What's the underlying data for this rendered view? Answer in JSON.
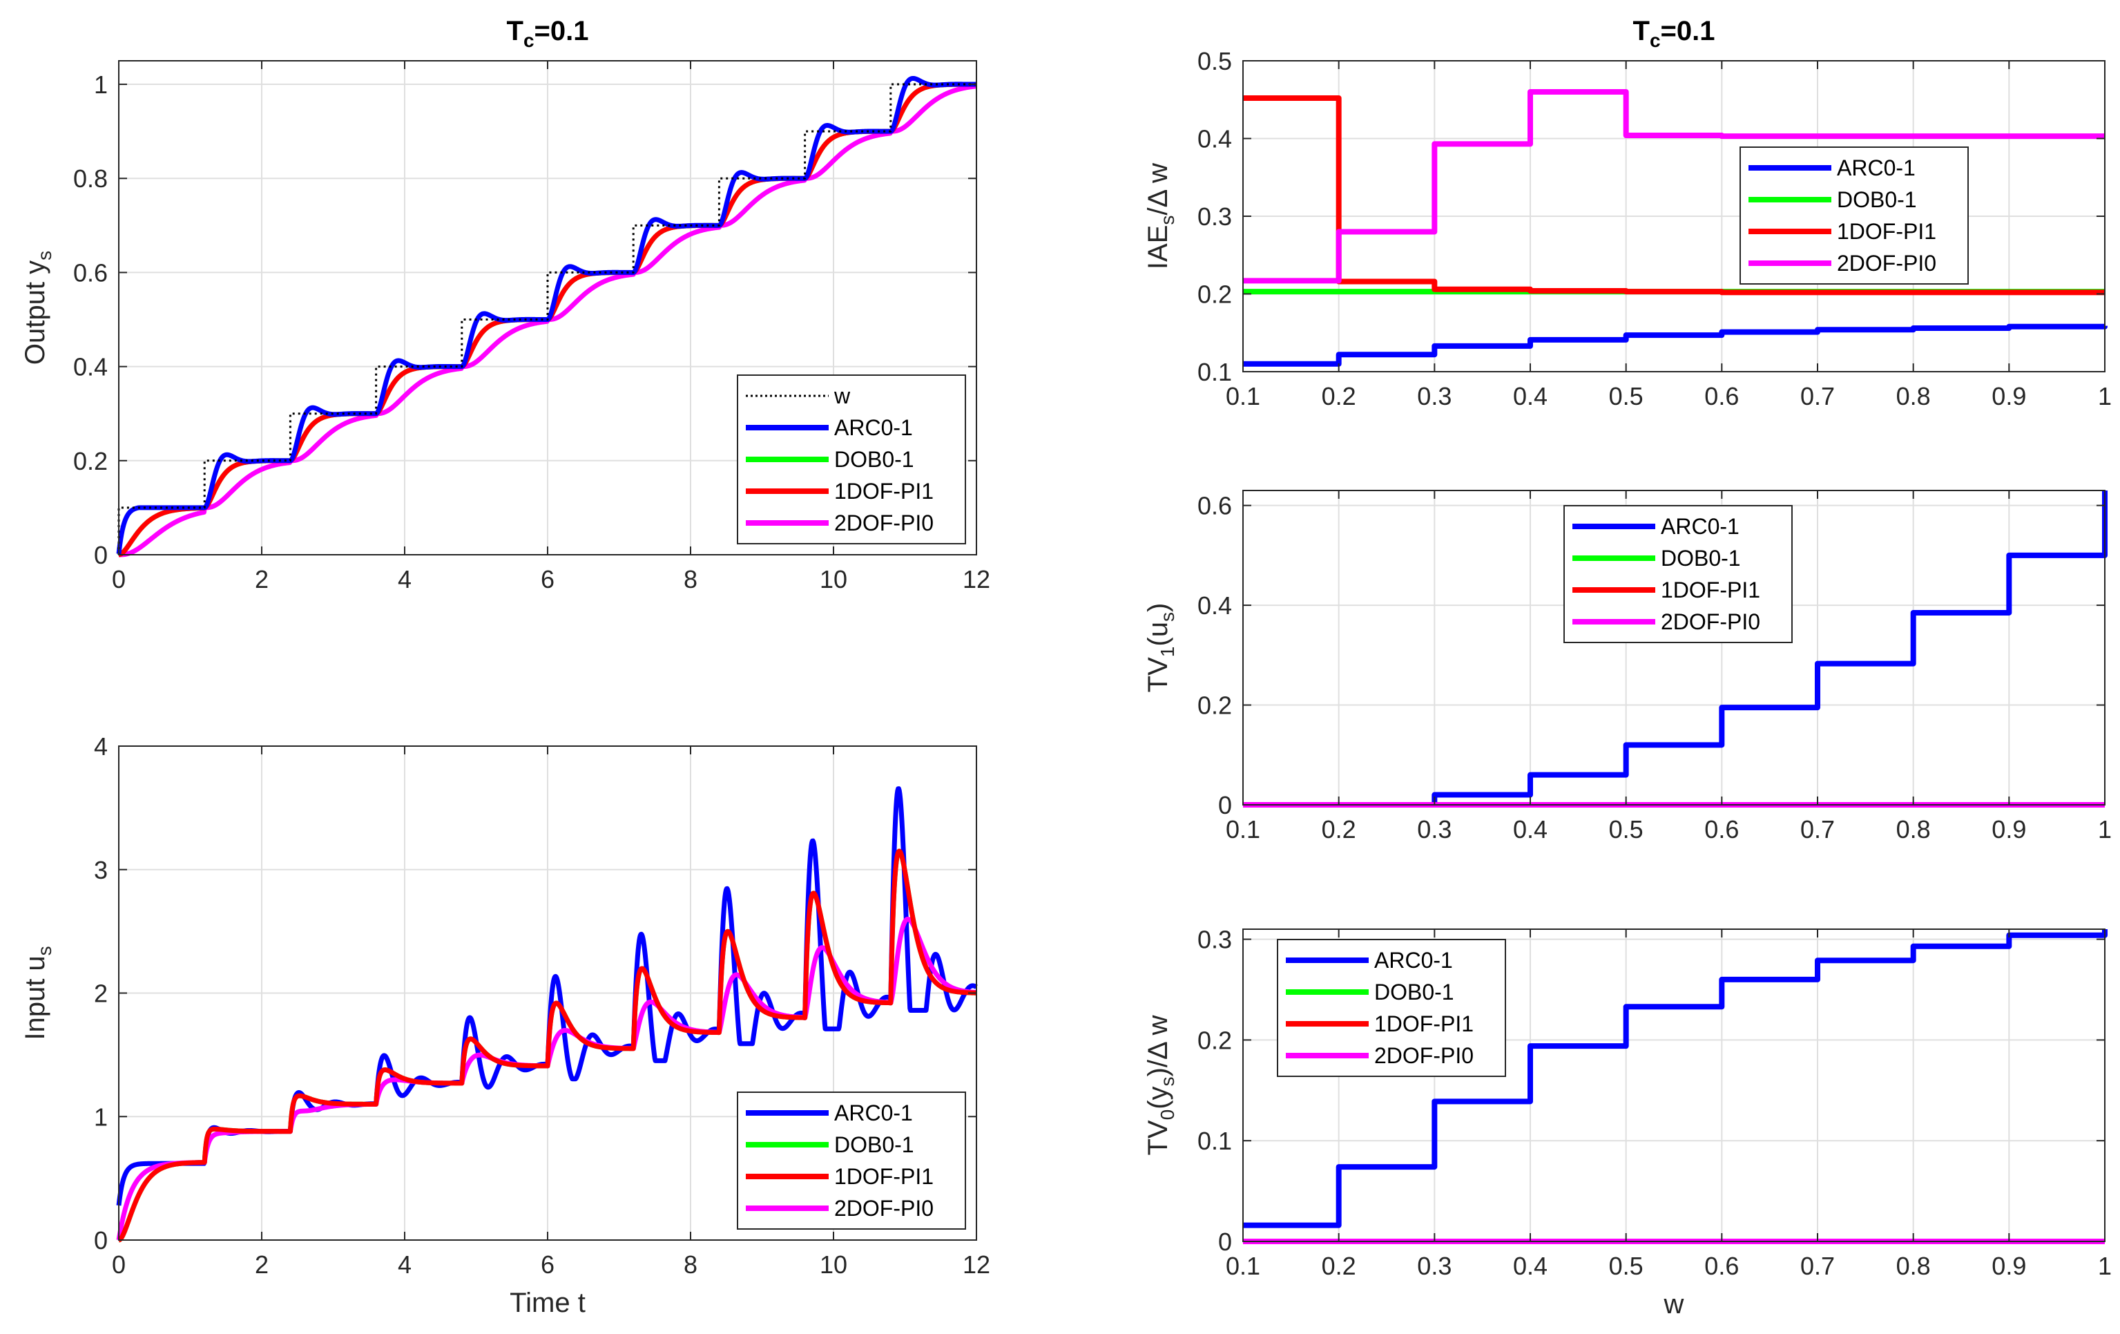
{
  "colors": {
    "w": "#000000",
    "ARC0-1": "#0000ff",
    "DOB0-1": "#00ff00",
    "1DOF-PI1": "#ff0000",
    "2DOF-PI0": "#ff00ff"
  },
  "chart_data": [
    {
      "id": "output",
      "type": "line",
      "title_main": "T",
      "title_sub": "c",
      "title_rest": "=0.1",
      "ylabel_main": "Output y",
      "ylabel_sub": "s",
      "xlabel": "",
      "xlim": [
        0,
        12
      ],
      "ylim": [
        0,
        1.05
      ],
      "xticks": [
        0,
        2,
        4,
        6,
        8,
        10,
        12
      ],
      "yticks": [
        0,
        0.2,
        0.4,
        0.6,
        0.8,
        1
      ],
      "ytick_labels": [
        "0",
        "0.2",
        "0.4",
        "0.6",
        "0.8",
        "1"
      ],
      "grid": true,
      "legend_position": "bottom-right",
      "legend": [
        "w",
        "ARC0-1",
        "DOB0-1",
        "1DOF-PI1",
        "2DOF-PI0"
      ],
      "step_times": [
        0,
        1.2,
        2.4,
        3.6,
        4.8,
        6.0,
        7.2,
        8.4,
        9.6,
        10.8
      ],
      "step_levels": [
        0.1,
        0.2,
        0.3,
        0.4,
        0.5,
        0.6,
        0.7,
        0.8,
        0.9,
        1.0
      ],
      "t_end": 12
    },
    {
      "id": "input",
      "type": "line",
      "ylabel_main": "Input u",
      "ylabel_sub": "s",
      "xlabel": "Time t",
      "xlim": [
        0,
        12
      ],
      "ylim": [
        0,
        4
      ],
      "xticks": [
        0,
        2,
        4,
        6,
        8,
        10,
        12
      ],
      "yticks": [
        0,
        1,
        2,
        3,
        4
      ],
      "ytick_labels": [
        "0",
        "1",
        "2",
        "3",
        "4"
      ],
      "grid": true,
      "legend_position": "bottom-right",
      "legend": [
        "ARC0-1",
        "DOB0-1",
        "1DOF-PI1",
        "2DOF-PI0"
      ],
      "step_times": [
        0,
        1.2,
        2.4,
        3.6,
        4.8,
        6.0,
        7.2,
        8.4,
        9.6,
        10.8
      ],
      "steady_levels": [
        0.63,
        0.88,
        1.1,
        1.27,
        1.41,
        1.55,
        1.68,
        1.8,
        1.92,
        2.0
      ],
      "peaks_ARC0-1": [
        0.63,
        0.92,
        1.21,
        1.52,
        1.84,
        2.19,
        2.55,
        2.94,
        3.35,
        3.8
      ],
      "peaks_1DOF-PI1": [
        0.63,
        0.9,
        1.17,
        1.38,
        1.63,
        1.92,
        2.2,
        2.5,
        2.81,
        3.15
      ],
      "peaks_2DOF-PI0": [
        0.6,
        0.87,
        1.05,
        1.3,
        1.5,
        1.7,
        1.93,
        2.15,
        2.37,
        2.6
      ]
    },
    {
      "id": "iae",
      "type": "line",
      "title_main": "T",
      "title_sub": "c",
      "title_rest": "=0.1",
      "ylabel_main": "IAE",
      "ylabel_sub": "s",
      "ylabel_rest": "/Δ w",
      "xlabel": "",
      "xlim": [
        0.1,
        1
      ],
      "ylim": [
        0.1,
        0.5
      ],
      "xticks": [
        0.1,
        0.2,
        0.3,
        0.4,
        0.5,
        0.6,
        0.7,
        0.8,
        0.9,
        1
      ],
      "xtick_labels": [
        "0.1",
        "0.2",
        "0.3",
        "0.4",
        "0.5",
        "0.6",
        "0.7",
        "0.8",
        "0.9",
        "1"
      ],
      "yticks": [
        0.1,
        0.2,
        0.3,
        0.4,
        0.5
      ],
      "ytick_labels": [
        "0.1",
        "0.2",
        "0.3",
        "0.4",
        "0.5"
      ],
      "grid": true,
      "legend_position": "top-right",
      "legend": [
        "ARC0-1",
        "DOB0-1",
        "1DOF-PI1",
        "2DOF-PI0"
      ],
      "x": [
        0.1,
        0.2,
        0.3,
        0.4,
        0.5,
        0.6,
        0.7,
        0.8,
        0.9,
        1.0
      ],
      "series": [
        {
          "name": "ARC0-1",
          "values": [
            0.11,
            0.122,
            0.133,
            0.141,
            0.147,
            0.151,
            0.154,
            0.156,
            0.158,
            0.159
          ]
        },
        {
          "name": "DOB0-1",
          "values": [
            0.203,
            0.203,
            0.203,
            0.203,
            0.203,
            0.203,
            0.203,
            0.203,
            0.203,
            0.203
          ]
        },
        {
          "name": "1DOF-PI1",
          "values": [
            0.452,
            0.216,
            0.206,
            0.204,
            0.203,
            0.202,
            0.202,
            0.202,
            0.202,
            0.202
          ]
        },
        {
          "name": "2DOF-PI0",
          "values": [
            0.217,
            0.28,
            0.393,
            0.46,
            0.404,
            0.403,
            0.403,
            0.403,
            0.403,
            0.403
          ]
        }
      ]
    },
    {
      "id": "tv1",
      "type": "line",
      "ylabel_main": "TV",
      "ylabel_sub": "1",
      "ylabel_rest": "(u",
      "ylabel_sub2": "s",
      "ylabel_rest2": ")",
      "xlabel": "",
      "xlim": [
        0.1,
        1
      ],
      "ylim": [
        0,
        0.63
      ],
      "xticks": [
        0.1,
        0.2,
        0.3,
        0.4,
        0.5,
        0.6,
        0.7,
        0.8,
        0.9,
        1
      ],
      "xtick_labels": [
        "0.1",
        "0.2",
        "0.3",
        "0.4",
        "0.5",
        "0.6",
        "0.7",
        "0.8",
        "0.9",
        "1"
      ],
      "yticks": [
        0,
        0.2,
        0.4,
        0.6
      ],
      "ytick_labels": [
        "0",
        "0.2",
        "0.4",
        "0.6"
      ],
      "grid": true,
      "legend_position": "top-left",
      "legend": [
        "ARC0-1",
        "DOB0-1",
        "1DOF-PI1",
        "2DOF-PI0"
      ],
      "x": [
        0.1,
        0.2,
        0.3,
        0.4,
        0.5,
        0.6,
        0.7,
        0.8,
        0.9,
        1.0
      ],
      "series": [
        {
          "name": "ARC0-1",
          "values": [
            0,
            0,
            0.02,
            0.06,
            0.12,
            0.195,
            0.283,
            0.385,
            0.5,
            0.63
          ]
        },
        {
          "name": "DOB0-1",
          "values": [
            0,
            0,
            0,
            0,
            0,
            0,
            0,
            0,
            0,
            0
          ]
        },
        {
          "name": "1DOF-PI1",
          "values": [
            0,
            0,
            0,
            0,
            0,
            0,
            0,
            0,
            0,
            0
          ]
        },
        {
          "name": "2DOF-PI0",
          "values": [
            0,
            0,
            0,
            0,
            0,
            0,
            0,
            0,
            0,
            0
          ]
        }
      ]
    },
    {
      "id": "tv0",
      "type": "line",
      "ylabel_main": "TV",
      "ylabel_sub": "0",
      "ylabel_rest": "(y",
      "ylabel_sub2": "s",
      "ylabel_rest2": ")/Δ w",
      "xlabel": "w",
      "xlim": [
        0.1,
        1
      ],
      "ylim": [
        0,
        0.31
      ],
      "xticks": [
        0.1,
        0.2,
        0.3,
        0.4,
        0.5,
        0.6,
        0.7,
        0.8,
        0.9,
        1
      ],
      "xtick_labels": [
        "0.1",
        "0.2",
        "0.3",
        "0.4",
        "0.5",
        "0.6",
        "0.7",
        "0.8",
        "0.9",
        "1"
      ],
      "yticks": [
        0,
        0.1,
        0.2,
        0.3
      ],
      "ytick_labels": [
        "0",
        "0.1",
        "0.2",
        "0.3"
      ],
      "grid": true,
      "legend_position": "top-left",
      "legend": [
        "ARC0-1",
        "DOB0-1",
        "1DOF-PI1",
        "2DOF-PI0"
      ],
      "x": [
        0.1,
        0.2,
        0.3,
        0.4,
        0.5,
        0.6,
        0.7,
        0.8,
        0.9,
        1.0
      ],
      "series": [
        {
          "name": "ARC0-1",
          "values": [
            0.016,
            0.074,
            0.139,
            0.194,
            0.233,
            0.26,
            0.279,
            0.293,
            0.304,
            0.31
          ]
        },
        {
          "name": "DOB0-1",
          "values": [
            0,
            0,
            0,
            0,
            0,
            0,
            0,
            0,
            0,
            0
          ]
        },
        {
          "name": "1DOF-PI1",
          "values": [
            0,
            0,
            0,
            0,
            0,
            0,
            0,
            0,
            0,
            0
          ]
        },
        {
          "name": "2DOF-PI0",
          "values": [
            0,
            0,
            0,
            0,
            0,
            0,
            0,
            0,
            0,
            0
          ]
        }
      ]
    }
  ]
}
